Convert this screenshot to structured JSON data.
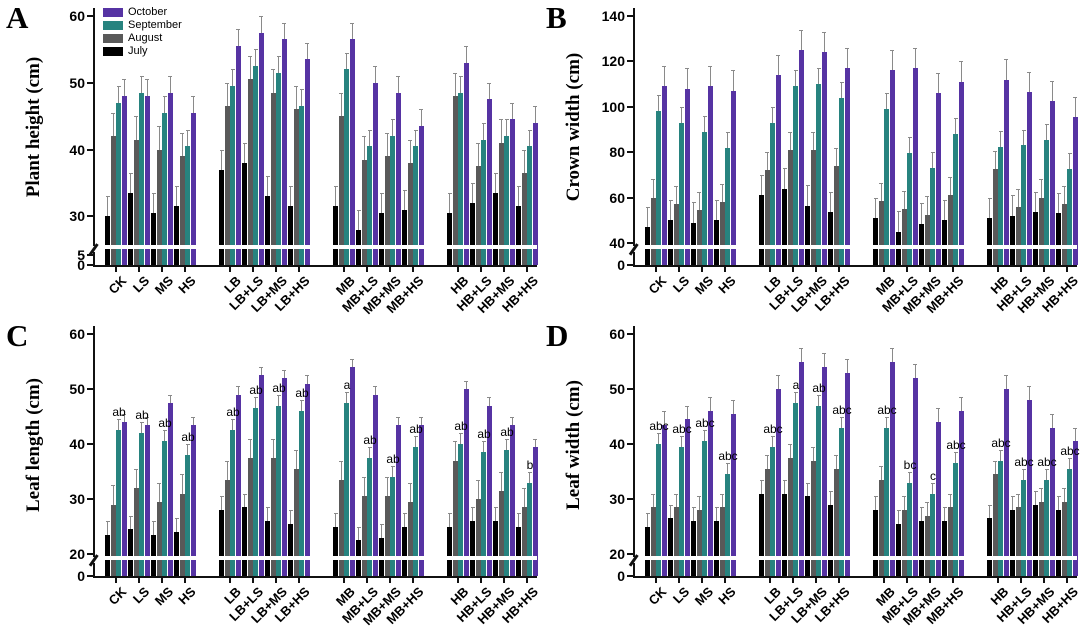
{
  "categories": [
    "CK",
    "LS",
    "MS",
    "HS",
    "LB",
    "LB+LS",
    "LB+MS",
    "LB+HS",
    "MB",
    "MB+LS",
    "MB+MS",
    "MB+HS",
    "HB",
    "HB+LS",
    "HB+MS",
    "HB+HS"
  ],
  "legend": {
    "order": [
      "October",
      "September",
      "August",
      "July"
    ]
  },
  "colors": {
    "october": "#5633a3",
    "september": "#27837f",
    "august": "#595959",
    "july": "#000000",
    "error_bar": "#8a8a8a",
    "axis": "#111111"
  },
  "chart_data": [
    {
      "type": "bar",
      "letter": "A",
      "ylabel": "Plant height (cm)",
      "ylim": [
        0,
        60
      ],
      "yticks": [
        30,
        40,
        50,
        60
      ],
      "break_tick": 5,
      "axis_break": true,
      "linear_min": 26,
      "legend_position": "top-left",
      "errors": [
        3,
        3.5,
        2.5,
        2.5
      ],
      "series": [
        {
          "name": "July",
          "color": "#000000",
          "values": [
            30,
            33.5,
            30.5,
            31.5,
            37,
            38,
            33,
            31.5,
            31.5,
            28,
            30.5,
            31,
            30.5,
            32,
            33.5,
            31.5
          ]
        },
        {
          "name": "August",
          "color": "#595959",
          "values": [
            42,
            41.5,
            40,
            39,
            46.5,
            50.5,
            48.5,
            46,
            45,
            38.5,
            39,
            38,
            48,
            37.5,
            41,
            36.5
          ]
        },
        {
          "name": "September",
          "color": "#27837f",
          "values": [
            47,
            48.5,
            45.5,
            40.5,
            49.5,
            52.5,
            51.5,
            46.5,
            52,
            40.5,
            42,
            40.5,
            48.5,
            41.5,
            42,
            40.5
          ]
        },
        {
          "name": "October",
          "color": "#5633a3",
          "values": [
            48,
            48,
            48.5,
            45.5,
            55.5,
            57.5,
            56.5,
            53.5,
            56.5,
            50,
            48.5,
            43.5,
            53,
            47.5,
            44.5,
            44
          ]
        }
      ],
      "letters": null
    },
    {
      "type": "bar",
      "letter": "B",
      "ylabel": "Crown width (cm)",
      "ylim": [
        0,
        140
      ],
      "yticks": [
        40,
        60,
        80,
        100,
        120,
        140
      ],
      "break_tick": null,
      "axis_break": true,
      "linear_min": 40,
      "errors": [
        9,
        8,
        7,
        9
      ],
      "series": [
        {
          "name": "July",
          "color": "#000000",
          "values": [
            47,
            50,
            49,
            50,
            61,
            64,
            56.5,
            53.5,
            51,
            45,
            48.5,
            50,
            51,
            52,
            53.5,
            53
          ]
        },
        {
          "name": "August",
          "color": "#595959",
          "values": [
            60,
            57,
            54.5,
            58,
            72,
            81,
            81,
            74,
            58.5,
            55,
            52.5,
            61,
            72.5,
            56,
            60,
            57
          ]
        },
        {
          "name": "September",
          "color": "#27837f",
          "values": [
            98,
            93,
            89,
            82,
            93,
            109,
            110,
            104,
            99,
            79.5,
            73,
            88,
            82.5,
            83,
            85.5,
            72.5
          ]
        },
        {
          "name": "October",
          "color": "#5633a3",
          "values": [
            109,
            108,
            109,
            107,
            114,
            125,
            124,
            117,
            116,
            117,
            106,
            111,
            112,
            106.5,
            102.5,
            95.5
          ]
        }
      ],
      "letters": null
    },
    {
      "type": "bar",
      "letter": "C",
      "ylabel": "Leaf length (cm)",
      "ylim": [
        0,
        60
      ],
      "yticks": [
        20,
        30,
        40,
        50,
        60
      ],
      "break_tick": null,
      "axis_break": true,
      "linear_min": 20,
      "errors": [
        2.5,
        3.5,
        2,
        1.5
      ],
      "series": [
        {
          "name": "July",
          "color": "#000000",
          "values": [
            23.5,
            24.5,
            23.5,
            24,
            28,
            28.5,
            26,
            25.5,
            25,
            22.5,
            23,
            25,
            25,
            26,
            26,
            25
          ]
        },
        {
          "name": "August",
          "color": "#595959",
          "values": [
            29,
            32,
            29.5,
            31,
            33.5,
            37.5,
            37.5,
            35.5,
            33.5,
            30.5,
            30.5,
            29.5,
            37,
            30,
            31.5,
            28.5
          ]
        },
        {
          "name": "September",
          "color": "#27837f",
          "values": [
            42.5,
            42,
            40.5,
            38,
            42.5,
            46.5,
            47,
            46,
            47.5,
            37.5,
            34,
            39.5,
            40,
            38.5,
            39,
            33
          ]
        },
        {
          "name": "October",
          "color": "#5633a3",
          "values": [
            44,
            43.5,
            47.5,
            43.5,
            49,
            52.5,
            52,
            51,
            54,
            49,
            43.5,
            43.5,
            50,
            47,
            43.5,
            39.5
          ]
        }
      ],
      "letters": [
        "ab",
        "ab",
        "ab",
        "ab",
        "ab",
        "ab",
        "ab",
        "ab",
        "a",
        "ab",
        "ab",
        "ab",
        "ab",
        "ab",
        "ab",
        "b"
      ]
    },
    {
      "type": "bar",
      "letter": "D",
      "ylabel": "Leaf width (cm)",
      "ylim": [
        0,
        60
      ],
      "yticks": [
        20,
        30,
        40,
        50,
        60
      ],
      "break_tick": null,
      "axis_break": true,
      "linear_min": 20,
      "errors": [
        2.5,
        2.5,
        2,
        2.5
      ],
      "series": [
        {
          "name": "July",
          "color": "#000000",
          "values": [
            25,
            26.5,
            26,
            26,
            31,
            31,
            30.5,
            29,
            28,
            25.5,
            26,
            26,
            26.5,
            28,
            29,
            28
          ]
        },
        {
          "name": "August",
          "color": "#595959",
          "values": [
            28.5,
            28.5,
            28,
            28.5,
            35.5,
            37.5,
            37,
            35.5,
            33.5,
            28,
            27,
            28.5,
            34.5,
            28.5,
            29.5,
            29.5
          ]
        },
        {
          "name": "September",
          "color": "#27837f",
          "values": [
            40,
            39.5,
            40.5,
            34.5,
            39.5,
            47.5,
            47,
            43,
            43,
            33,
            31,
            36.5,
            37,
            33.5,
            33.5,
            35.5
          ]
        },
        {
          "name": "October",
          "color": "#5633a3",
          "values": [
            43.5,
            44.5,
            46,
            45.5,
            50,
            55,
            54,
            53,
            55,
            52,
            44,
            46,
            50,
            48,
            43,
            40.5
          ]
        }
      ],
      "letters": [
        "abc",
        "abc",
        "abc",
        "abc",
        "abc",
        "a",
        "ab",
        "abc",
        "abc",
        "bc",
        "c",
        "abc",
        "abc",
        "abc",
        "abc",
        "abc"
      ]
    }
  ]
}
